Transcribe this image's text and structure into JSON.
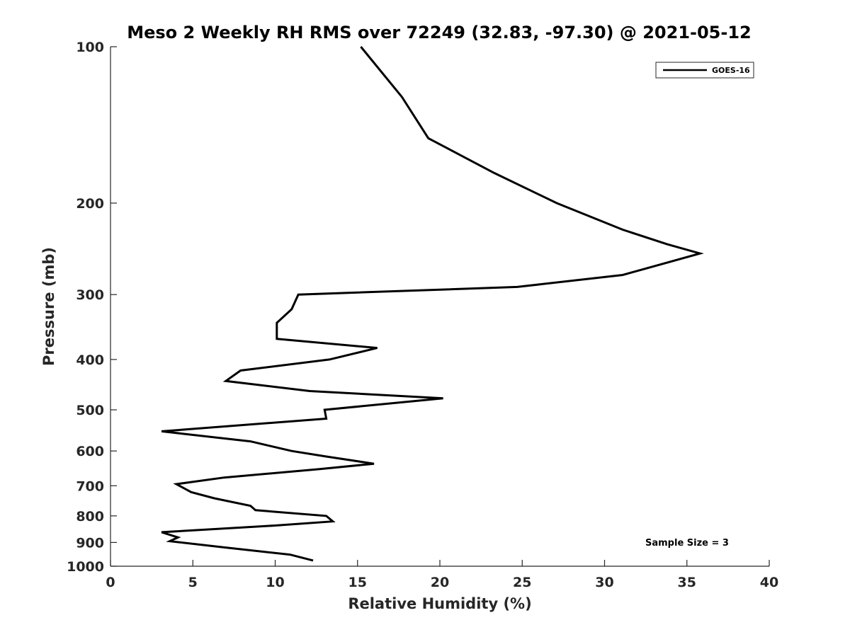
{
  "chart_data": {
    "type": "line",
    "title": "Meso 2 Weekly RH RMS over 72249 (32.83, -97.30) @ 2021-05-12",
    "xlabel": "Relative Humidity (%)",
    "ylabel": "Pressure (mb)",
    "xlim": [
      0,
      40
    ],
    "ylim": [
      100,
      1000
    ],
    "y_scale": "log",
    "y_reversed": true,
    "xticks": [
      0,
      5,
      10,
      15,
      20,
      25,
      30,
      35,
      40
    ],
    "yticks": [
      100,
      200,
      300,
      400,
      500,
      600,
      700,
      800,
      900,
      1000
    ],
    "grid": false,
    "legend_position": "top-right",
    "annotation": "Sample Size = 3",
    "series": [
      {
        "name": "GOES-16",
        "color": "#000000",
        "points": [
          [
            15.2,
            100
          ],
          [
            17.7,
            125
          ],
          [
            19.3,
            150
          ],
          [
            23.3,
            175
          ],
          [
            27.1,
            200
          ],
          [
            31.1,
            225
          ],
          [
            33.8,
            240
          ],
          [
            35.8,
            250
          ],
          [
            31.1,
            275
          ],
          [
            24.7,
            290
          ],
          [
            11.4,
            300
          ],
          [
            11.0,
            320
          ],
          [
            10.1,
            340
          ],
          [
            10.1,
            365
          ],
          [
            16.2,
            380
          ],
          [
            13.3,
            400
          ],
          [
            7.9,
            420
          ],
          [
            7.0,
            440
          ],
          [
            12.1,
            460
          ],
          [
            20.2,
            475
          ],
          [
            13.0,
            500
          ],
          [
            13.1,
            520
          ],
          [
            3.1,
            550
          ],
          [
            8.5,
            575
          ],
          [
            11.0,
            600
          ],
          [
            13.1,
            615
          ],
          [
            16.0,
            635
          ],
          [
            12.7,
            650
          ],
          [
            6.9,
            675
          ],
          [
            4.0,
            695
          ],
          [
            4.9,
            720
          ],
          [
            6.3,
            740
          ],
          [
            8.5,
            765
          ],
          [
            8.8,
            780
          ],
          [
            13.1,
            800
          ],
          [
            13.5,
            820
          ],
          [
            10.0,
            835
          ],
          [
            3.1,
            860
          ],
          [
            4.1,
            880
          ],
          [
            3.6,
            895
          ],
          [
            6.9,
            920
          ],
          [
            10.9,
            950
          ],
          [
            12.3,
            975
          ]
        ]
      }
    ]
  }
}
